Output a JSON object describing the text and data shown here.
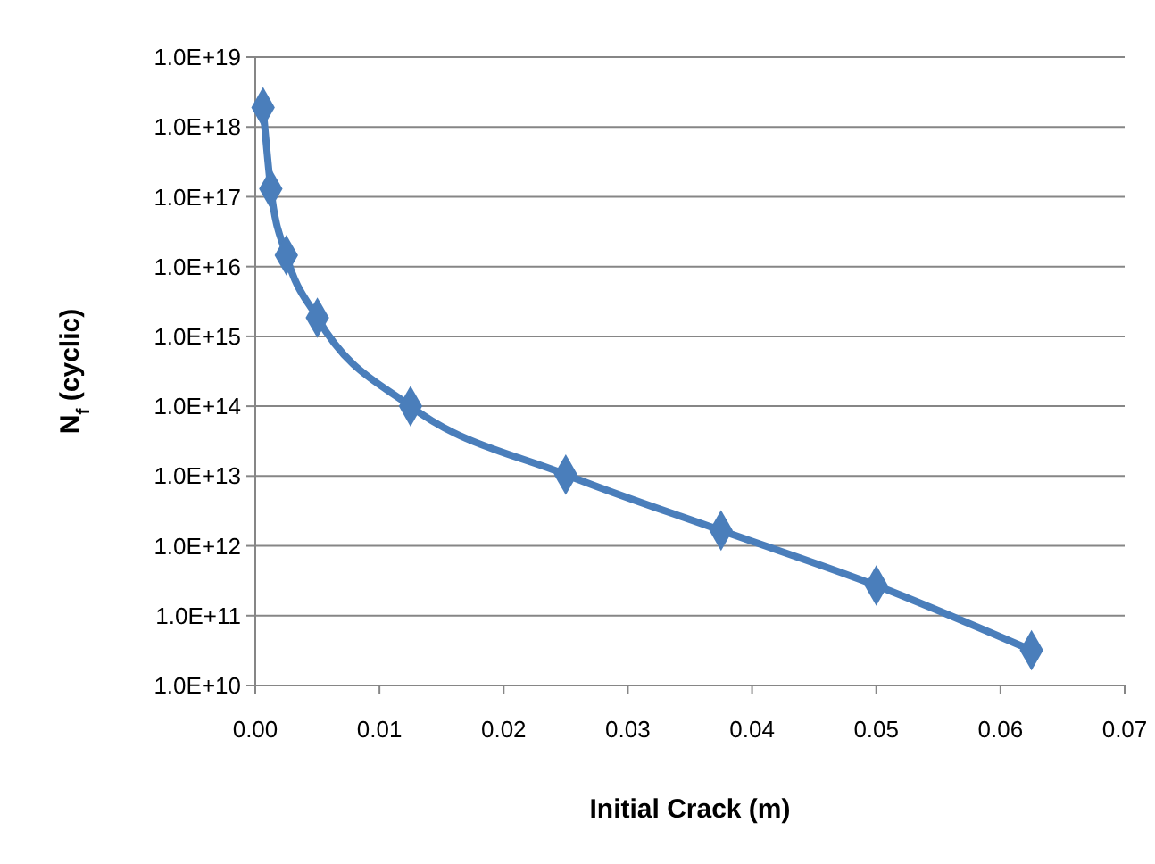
{
  "chart_data": {
    "type": "line",
    "xlabel": "Initial Crack (m)",
    "ylabel": "N$_{f}$ (cyclic)",
    "x": [
      0.000625,
      0.00125,
      0.0025,
      0.005,
      0.0125,
      0.025,
      0.0375,
      0.05,
      0.0625
    ],
    "series": [
      {
        "color": "#4a7ebb",
        "values": [
          1.9e+18,
          1.3e+17,
          1.45e+16,
          1850000000000000.0,
          100000000000000.0,
          10500000000000.0,
          1660000000000.0,
          270000000000.0,
          32000000000.0
        ]
      }
    ],
    "log": "y",
    "xlim": [
      0,
      0.07
    ],
    "xticks": [
      {
        "value": 0,
        "label": "0.00"
      },
      {
        "value": 0.01,
        "label": "0.01"
      },
      {
        "value": 0.02,
        "label": "0.02"
      },
      {
        "value": 0.03,
        "label": "0.03"
      },
      {
        "value": 0.04,
        "label": "0.04"
      },
      {
        "value": 0.05,
        "label": "0.05"
      },
      {
        "value": 0.06,
        "label": "0.06"
      },
      {
        "value": 0.07,
        "label": "0.07"
      }
    ],
    "ylim": [
      10000000000.0,
      1e+19
    ],
    "yticks": [
      {
        "value": 10000000000.0,
        "label": "1.0E+10"
      },
      {
        "value": 100000000000.0,
        "label": "1.0E+11"
      },
      {
        "value": 1000000000000.0,
        "label": "1.0E+12"
      },
      {
        "value": 10000000000000.0,
        "label": "1.0E+13"
      },
      {
        "value": 100000000000000.0,
        "label": "1.0E+14"
      },
      {
        "value": 1000000000000000.0,
        "label": "1.0E+15"
      },
      {
        "value": 1e+16,
        "label": "1.0E+16"
      },
      {
        "value": 1e+17,
        "label": "1.0E+17"
      },
      {
        "value": 1e+18,
        "label": "1.0E+18"
      },
      {
        "value": 1e+19,
        "label": "1.0E+19"
      }
    ],
    "grid": "y",
    "marker": "diamond",
    "line_style": "solid"
  }
}
